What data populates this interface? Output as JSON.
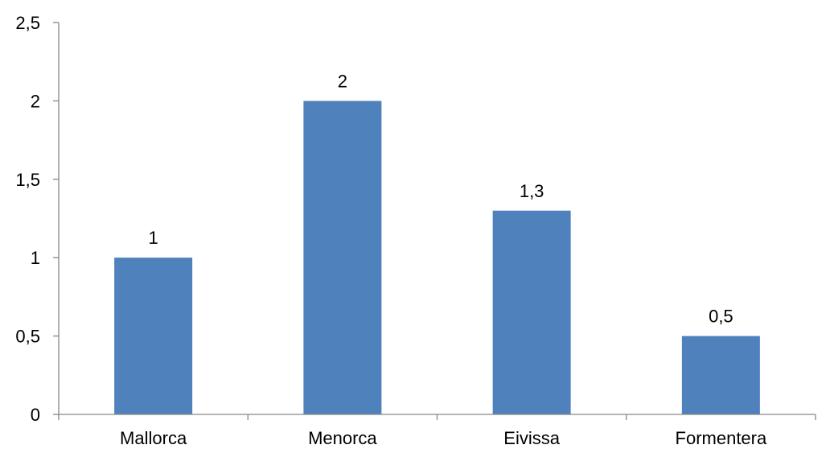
{
  "chart_data": {
    "type": "bar",
    "categories": [
      "Mallorca",
      "Menorca",
      "Eivissa",
      "Formentera"
    ],
    "values": [
      1,
      2,
      1.3,
      0.5
    ],
    "value_labels": [
      "1",
      "2",
      "1,3",
      "0,5"
    ],
    "yticks": [
      0,
      0.5,
      1,
      1.5,
      2,
      2.5
    ],
    "ytick_labels": [
      "0",
      "0,5",
      "1",
      "1,5",
      "2",
      "2,5"
    ],
    "ylim": [
      0,
      2.5
    ],
    "title": "",
    "xlabel": "",
    "ylabel": "",
    "grid": false,
    "legend": "none",
    "bar_color": "#4F81BD",
    "axis_color": "#868686"
  }
}
